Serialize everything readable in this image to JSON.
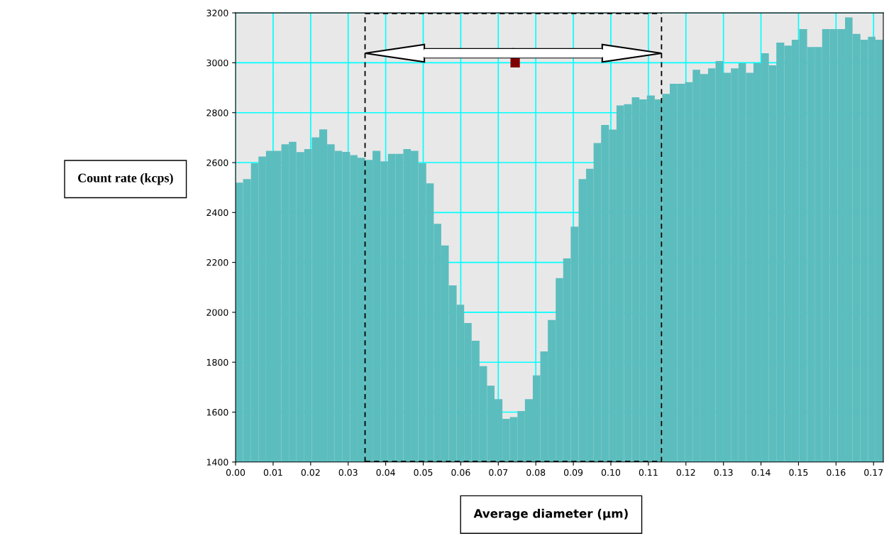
{
  "chart_data": {
    "type": "histogram",
    "xlabel": "Average diameter (µm)",
    "ylabel": "Count rate (kcps)",
    "bins": [
      0.0,
      0.002,
      0.0041,
      0.0061,
      0.0081,
      0.0102,
      0.0122,
      0.0142,
      0.0162,
      0.0183,
      0.0203,
      0.0223,
      0.0244,
      0.0264,
      0.0284,
      0.0305,
      0.0325,
      0.0345,
      0.0365,
      0.0386,
      0.0406,
      0.0426,
      0.0447,
      0.0467,
      0.0487,
      0.0508,
      0.0528,
      0.0548,
      0.0568,
      0.0589,
      0.0609,
      0.0629,
      0.065,
      0.067,
      0.069,
      0.0711,
      0.0731,
      0.0751,
      0.0771,
      0.0792,
      0.0812,
      0.0832,
      0.0853,
      0.0873,
      0.0893,
      0.0914,
      0.0934,
      0.0954,
      0.0974,
      0.0995,
      0.1015,
      0.1035,
      0.1056,
      0.1076,
      0.1096,
      0.1117,
      0.1137,
      0.1157,
      0.1177,
      0.1198,
      0.1218,
      0.1238,
      0.1259,
      0.1279,
      0.1299,
      0.132,
      0.134,
      0.136,
      0.138,
      0.1401,
      0.1421,
      0.1441,
      0.1462,
      0.1482,
      0.1502,
      0.1523,
      0.1543,
      0.1563,
      0.1583,
      0.1604,
      0.1624,
      0.1644,
      0.1665,
      0.1685,
      0.1705,
      0.1726
    ],
    "values": [
      2520,
      2534,
      2597,
      2624,
      2647,
      2647,
      2673,
      2683,
      2642,
      2654,
      2701,
      2733,
      2673,
      2647,
      2643,
      2630,
      2619,
      2611,
      2647,
      2605,
      2635,
      2635,
      2654,
      2647,
      2597,
      2517,
      2355,
      2268,
      2108,
      2030,
      1957,
      1886,
      1784,
      1706,
      1652,
      1573,
      1580,
      1604,
      1652,
      1747,
      1843,
      1969,
      2137,
      2216,
      2343,
      2534,
      2575,
      2678,
      2751,
      2732,
      2829,
      2834,
      2862,
      2853,
      2869,
      2853,
      2875,
      2916,
      2916,
      2922,
      2972,
      2955,
      2978,
      3007,
      2960,
      2978,
      2998,
      2960,
      2998,
      3038,
      2990,
      3081,
      3069,
      3092,
      3135,
      3063,
      3063,
      3135,
      3135,
      3135,
      3182,
      3116,
      3092,
      3104,
      3092
    ],
    "color": "#5cbdbe",
    "series": [
      {
        "type": "scatter",
        "x": [
          0.0745
        ],
        "values": [
          3000
        ],
        "color": "#800000",
        "marker": "square"
      }
    ],
    "ref_lines": [
      {
        "axis": "x",
        "value": 0.0345,
        "color": "#000000",
        "line_style": "dashed"
      },
      {
        "axis": "x",
        "value": 0.1135,
        "color": "#000000",
        "line_style": "dashed"
      }
    ],
    "xlim": [
      0,
      0.1726
    ],
    "ylim": [
      1400,
      3200
    ],
    "xticks": [
      {
        "value": 0,
        "label": "0.00"
      },
      {
        "value": 0.01,
        "label": "0.01"
      },
      {
        "value": 0.02,
        "label": "0.02"
      },
      {
        "value": 0.03,
        "label": "0.03"
      },
      {
        "value": 0.04,
        "label": "0.04"
      },
      {
        "value": 0.05,
        "label": "0.05"
      },
      {
        "value": 0.06,
        "label": "0.06"
      },
      {
        "value": 0.07,
        "label": "0.07"
      },
      {
        "value": 0.08,
        "label": "0.08"
      },
      {
        "value": 0.09,
        "label": "0.09"
      },
      {
        "value": 0.1,
        "label": "0.10"
      },
      {
        "value": 0.11,
        "label": "0.11"
      },
      {
        "value": 0.12,
        "label": "0.12"
      },
      {
        "value": 0.13,
        "label": "0.13"
      },
      {
        "value": 0.14,
        "label": "0.14"
      },
      {
        "value": 0.15,
        "label": "0.15"
      },
      {
        "value": 0.16,
        "label": "0.16"
      },
      {
        "value": 0.17,
        "label": "0.17"
      }
    ],
    "yticks": [
      1400,
      1600,
      1800,
      2000,
      2200,
      2400,
      2600,
      2800,
      3000,
      3200
    ],
    "grid": true,
    "legend": false
  }
}
